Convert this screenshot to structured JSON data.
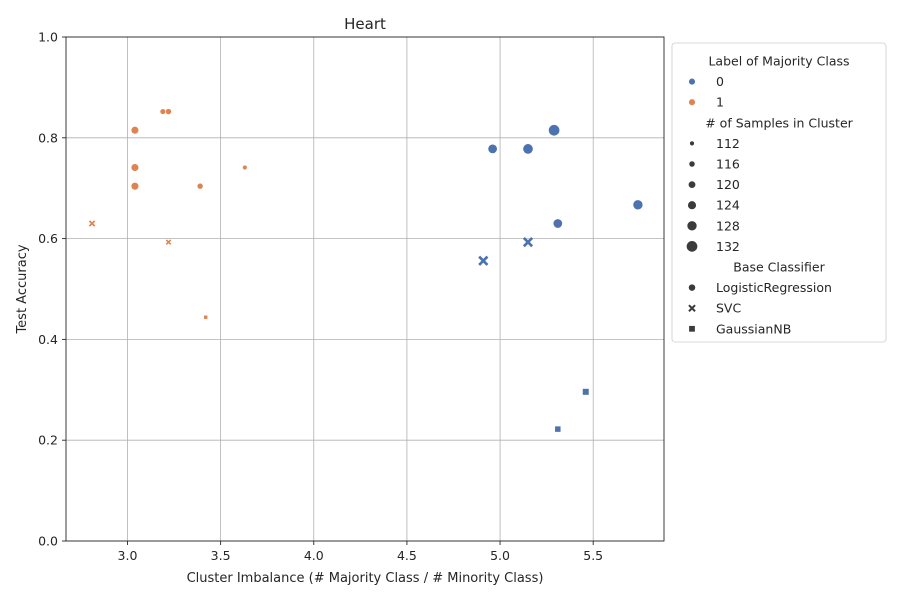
{
  "chart_data": {
    "type": "scatter",
    "title": "Heart",
    "xlabel": "Cluster Imbalance (# Majority Class / # Minority Class)",
    "ylabel": "Test Accuracy",
    "xlim": [
      2.67,
      5.88
    ],
    "ylim": [
      0.0,
      1.0
    ],
    "xticks": [
      3.0,
      3.5,
      4.0,
      4.5,
      5.0,
      5.5
    ],
    "xtick_labels": [
      "3.0",
      "3.5",
      "4.0",
      "4.5",
      "5.0",
      "5.5"
    ],
    "yticks": [
      0.0,
      0.2,
      0.4,
      0.6,
      0.8,
      1.0
    ],
    "ytick_labels": [
      "0.0",
      "0.2",
      "0.4",
      "0.6",
      "0.8",
      "1.0"
    ],
    "grid": true,
    "legend_placement": "outside-right",
    "colors": {
      "0": "#4c72b0",
      "1": "#dd8452"
    },
    "legend": {
      "hue_title": "Label of Majority Class",
      "hue_entries": [
        {
          "label": "0",
          "key": "0"
        },
        {
          "label": "1",
          "key": "1"
        }
      ],
      "size_title": "# of Samples in Cluster",
      "size_entries": [
        {
          "label": "112",
          "n": 112
        },
        {
          "label": "116",
          "n": 116
        },
        {
          "label": "120",
          "n": 120
        },
        {
          "label": "124",
          "n": 124
        },
        {
          "label": "128",
          "n": 128
        },
        {
          "label": "132",
          "n": 132
        }
      ],
      "style_title": "Base Classifier",
      "style_entries": [
        {
          "label": "LogisticRegression",
          "marker": "circle"
        },
        {
          "label": "SVC",
          "marker": "x"
        },
        {
          "label": "GaussianNB",
          "marker": "square"
        }
      ]
    },
    "points": [
      {
        "x": 3.04,
        "y": 0.815,
        "label": "1",
        "n": 121,
        "classifier": "LogisticRegression"
      },
      {
        "x": 3.04,
        "y": 0.741,
        "label": "1",
        "n": 121,
        "classifier": "LogisticRegression"
      },
      {
        "x": 3.04,
        "y": 0.704,
        "label": "1",
        "n": 121,
        "classifier": "LogisticRegression"
      },
      {
        "x": 3.19,
        "y": 0.852,
        "label": "1",
        "n": 115,
        "classifier": "LogisticRegression"
      },
      {
        "x": 3.22,
        "y": 0.852,
        "label": "1",
        "n": 116,
        "classifier": "LogisticRegression"
      },
      {
        "x": 3.39,
        "y": 0.704,
        "label": "1",
        "n": 116,
        "classifier": "LogisticRegression"
      },
      {
        "x": 3.63,
        "y": 0.741,
        "label": "1",
        "n": 112,
        "classifier": "LogisticRegression"
      },
      {
        "x": 2.81,
        "y": 0.63,
        "label": "1",
        "n": 116,
        "classifier": "SVC"
      },
      {
        "x": 3.22,
        "y": 0.593,
        "label": "1",
        "n": 113,
        "classifier": "SVC"
      },
      {
        "x": 3.42,
        "y": 0.444,
        "label": "1",
        "n": 110,
        "classifier": "GaussianNB"
      },
      {
        "x": 4.96,
        "y": 0.778,
        "label": "0",
        "n": 126,
        "classifier": "LogisticRegression"
      },
      {
        "x": 5.15,
        "y": 0.778,
        "label": "0",
        "n": 129,
        "classifier": "LogisticRegression"
      },
      {
        "x": 5.29,
        "y": 0.815,
        "label": "0",
        "n": 132,
        "classifier": "LogisticRegression"
      },
      {
        "x": 5.31,
        "y": 0.63,
        "label": "0",
        "n": 126,
        "classifier": "LogisticRegression"
      },
      {
        "x": 5.74,
        "y": 0.667,
        "label": "0",
        "n": 128,
        "classifier": "LogisticRegression"
      },
      {
        "x": 4.91,
        "y": 0.556,
        "label": "0",
        "n": 127,
        "classifier": "SVC"
      },
      {
        "x": 5.15,
        "y": 0.593,
        "label": "0",
        "n": 127,
        "classifier": "SVC"
      },
      {
        "x": 5.46,
        "y": 0.296,
        "label": "0",
        "n": 120,
        "classifier": "GaussianNB"
      },
      {
        "x": 5.31,
        "y": 0.222,
        "label": "0",
        "n": 118,
        "classifier": "GaussianNB"
      }
    ]
  }
}
